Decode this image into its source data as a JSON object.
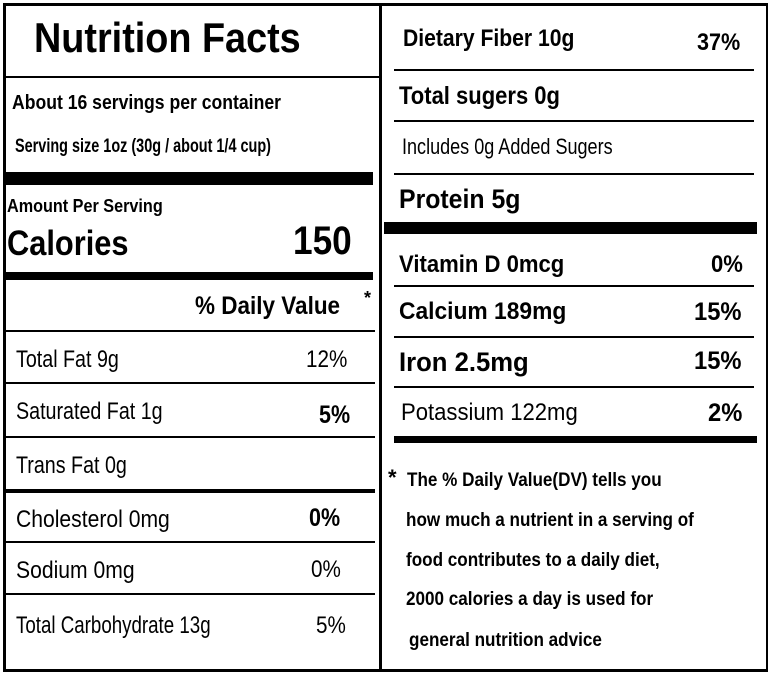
{
  "label": {
    "title": "Nutrition Facts",
    "servings_per_container": "About 16 servings per container",
    "serving_size": "Serving size 1oz (30g / about 1/4 cup)",
    "amount_per_serving": "Amount Per Serving",
    "calories_label": "Calories",
    "calories_value": "150",
    "daily_value_header": "% Daily Value",
    "daily_value_asterisk": "*"
  },
  "left_nutrients": [
    {
      "name": "Total Fat  9g",
      "dv": "12%"
    },
    {
      "name": "Saturated Fat  1g",
      "dv": "5%"
    },
    {
      "name": "Trans Fat 0g",
      "dv": ""
    },
    {
      "name": "Cholesterol  0mg",
      "dv": "0%"
    },
    {
      "name": "Sodium  0mg",
      "dv": "0%"
    },
    {
      "name": "Total Carbohydrate  13g",
      "dv": "5%"
    }
  ],
  "right_nutrients": [
    {
      "name": "Dietary Fiber  10g",
      "dv": "37%"
    },
    {
      "name": "Total sugers 0g",
      "dv": ""
    },
    {
      "name": "Includes 0g Added Sugers",
      "dv": ""
    },
    {
      "name": "Protein 5g",
      "dv": ""
    }
  ],
  "minerals": [
    {
      "name": "Vitamin D  0mcg",
      "dv": "0%"
    },
    {
      "name": "Calcium  189mg",
      "dv": "15%"
    },
    {
      "name": "Iron 2.5mg",
      "dv": "15%"
    },
    {
      "name": "Potassium   122mg",
      "dv": "2%"
    }
  ],
  "footnote": {
    "asterisk": "*",
    "lines": [
      "The % Daily Value(DV)  tells you",
      "how much a nutrient in a serving of",
      "food contributes to a daily diet,",
      "2000 calories a day is used for",
      "general nutrition advice"
    ]
  }
}
